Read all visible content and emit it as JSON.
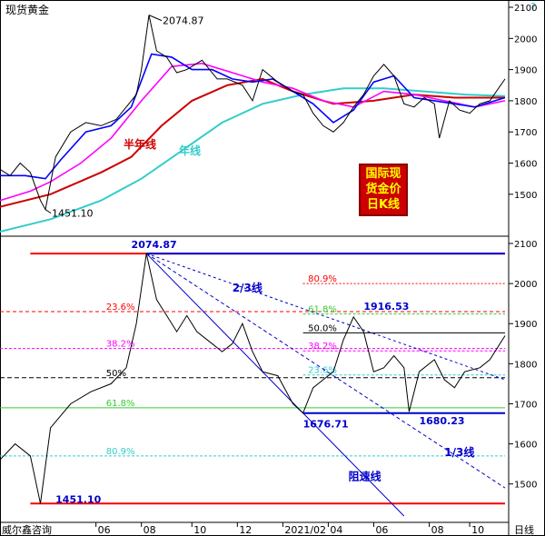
{
  "header": {
    "title": "现货黄金",
    "corner_mark": "?"
  },
  "stamp": {
    "text": "国际现货金价日K线",
    "lines": [
      "国际现",
      "货金价",
      "日K线"
    ]
  },
  "footer": {
    "brand": "威尔鑫咨询",
    "period_label": "日线"
  },
  "colors": {
    "price": "#000000",
    "ma_short": "#0000ff",
    "ma_mid": "#ff00ff",
    "half_year": "#cc0000",
    "year": "#33cccc",
    "red_line": "#ff0000",
    "blue_line": "#0000cc",
    "green_line": "#33cc33",
    "stamp_bg": "#cc0000",
    "stamp_text": "#ffff00"
  },
  "chart_data": [
    {
      "type": "line",
      "title": "现货黄金",
      "y_ticks": [
        1500,
        1600,
        1700,
        1800,
        1900,
        2000,
        2100
      ],
      "ylim": [
        1380,
        2100
      ],
      "x_ticks": [],
      "annotations": [
        {
          "text": "2074.87",
          "value": 2074.87
        },
        {
          "text": "1451.10",
          "value": 1451.1
        },
        {
          "text": "半年线",
          "series": "half_year"
        },
        {
          "text": "年线",
          "series": "year"
        }
      ],
      "series": [
        {
          "key": "price",
          "color": "#000000",
          "points": [
            [
              0,
              1580
            ],
            [
              0.02,
              1560
            ],
            [
              0.04,
              1600
            ],
            [
              0.06,
              1570
            ],
            [
              0.08,
              1480
            ],
            [
              0.09,
              1451.1
            ],
            [
              0.11,
              1620
            ],
            [
              0.14,
              1700
            ],
            [
              0.17,
              1730
            ],
            [
              0.2,
              1720
            ],
            [
              0.23,
              1740
            ],
            [
              0.25,
              1780
            ],
            [
              0.27,
              1820
            ],
            [
              0.28,
              1900
            ],
            [
              0.295,
              2074.87
            ],
            [
              0.31,
              1960
            ],
            [
              0.33,
              1940
            ],
            [
              0.35,
              1890
            ],
            [
              0.37,
              1900
            ],
            [
              0.4,
              1930
            ],
            [
              0.43,
              1870
            ],
            [
              0.45,
              1870
            ],
            [
              0.48,
              1850
            ],
            [
              0.5,
              1800
            ],
            [
              0.52,
              1900
            ],
            [
              0.55,
              1860
            ],
            [
              0.58,
              1830
            ],
            [
              0.6,
              1820
            ],
            [
              0.62,
              1760
            ],
            [
              0.64,
              1720
            ],
            [
              0.66,
              1700
            ],
            [
              0.68,
              1730
            ],
            [
              0.7,
              1780
            ],
            [
              0.72,
              1820
            ],
            [
              0.74,
              1880
            ],
            [
              0.76,
              1916.53
            ],
            [
              0.78,
              1880
            ],
            [
              0.8,
              1790
            ],
            [
              0.82,
              1780
            ],
            [
              0.84,
              1810
            ],
            [
              0.86,
              1790
            ],
            [
              0.87,
              1680.23
            ],
            [
              0.89,
              1800
            ],
            [
              0.91,
              1770
            ],
            [
              0.93,
              1760
            ],
            [
              0.95,
              1790
            ],
            [
              0.97,
              1800
            ],
            [
              1.0,
              1870
            ]
          ]
        },
        {
          "key": "ma_short",
          "color": "#0000ff",
          "points": [
            [
              0,
              1560
            ],
            [
              0.05,
              1560
            ],
            [
              0.09,
              1550
            ],
            [
              0.12,
              1610
            ],
            [
              0.17,
              1700
            ],
            [
              0.22,
              1720
            ],
            [
              0.26,
              1780
            ],
            [
              0.3,
              1950
            ],
            [
              0.34,
              1940
            ],
            [
              0.38,
              1900
            ],
            [
              0.42,
              1900
            ],
            [
              0.46,
              1870
            ],
            [
              0.5,
              1860
            ],
            [
              0.54,
              1870
            ],
            [
              0.58,
              1830
            ],
            [
              0.62,
              1790
            ],
            [
              0.66,
              1730
            ],
            [
              0.7,
              1770
            ],
            [
              0.74,
              1860
            ],
            [
              0.78,
              1880
            ],
            [
              0.82,
              1810
            ],
            [
              0.86,
              1800
            ],
            [
              0.9,
              1790
            ],
            [
              0.94,
              1780
            ],
            [
              1.0,
              1810
            ]
          ]
        },
        {
          "key": "ma_mid",
          "color": "#ff00ff",
          "points": [
            [
              0,
              1480
            ],
            [
              0.06,
              1510
            ],
            [
              0.1,
              1540
            ],
            [
              0.16,
              1600
            ],
            [
              0.22,
              1680
            ],
            [
              0.28,
              1800
            ],
            [
              0.34,
              1910
            ],
            [
              0.4,
              1920
            ],
            [
              0.46,
              1890
            ],
            [
              0.52,
              1860
            ],
            [
              0.58,
              1840
            ],
            [
              0.64,
              1800
            ],
            [
              0.7,
              1780
            ],
            [
              0.76,
              1830
            ],
            [
              0.82,
              1820
            ],
            [
              0.88,
              1800
            ],
            [
              0.94,
              1780
            ],
            [
              1.0,
              1800
            ]
          ]
        },
        {
          "key": "half_year",
          "color": "#cc0000",
          "points": [
            [
              0,
              1460
            ],
            [
              0.1,
              1500
            ],
            [
              0.2,
              1570
            ],
            [
              0.26,
              1620
            ],
            [
              0.32,
              1720
            ],
            [
              0.38,
              1800
            ],
            [
              0.45,
              1850
            ],
            [
              0.52,
              1870
            ],
            [
              0.58,
              1830
            ],
            [
              0.66,
              1790
            ],
            [
              0.74,
              1800
            ],
            [
              0.82,
              1820
            ],
            [
              0.9,
              1810
            ],
            [
              1.0,
              1810
            ]
          ]
        },
        {
          "key": "year",
          "color": "#33cccc",
          "points": [
            [
              0,
              1380
            ],
            [
              0.1,
              1420
            ],
            [
              0.2,
              1480
            ],
            [
              0.28,
              1550
            ],
            [
              0.36,
              1640
            ],
            [
              0.44,
              1730
            ],
            [
              0.52,
              1790
            ],
            [
              0.6,
              1820
            ],
            [
              0.68,
              1840
            ],
            [
              0.76,
              1840
            ],
            [
              0.84,
              1830
            ],
            [
              0.92,
              1820
            ],
            [
              1.0,
              1815
            ]
          ]
        }
      ]
    },
    {
      "type": "line",
      "y_ticks": [
        1500,
        1600,
        1700,
        1800,
        1900,
        2000,
        2100
      ],
      "ylim": [
        1420,
        2100
      ],
      "x_ticks": [
        "06",
        "08",
        "10",
        "12",
        "2021/02",
        "04",
        "06",
        "08",
        "10"
      ],
      "levels": [
        {
          "value": 2074.87,
          "color": "#ff0000",
          "label": ""
        },
        {
          "value": 2074.87,
          "color": "#0000cc",
          "label": ""
        },
        {
          "value": 2000,
          "color": "#ff0000",
          "label": "80.9%"
        },
        {
          "value": 1930,
          "color": "#ff0000",
          "label": "23.6%"
        },
        {
          "value": 1924,
          "color": "#33cc33",
          "label": "61.8%"
        },
        {
          "value": 1877,
          "color": "#000000",
          "label": "50.0%"
        },
        {
          "value": 1838,
          "color": "#ff00ff",
          "label": "38.2%"
        },
        {
          "value": 1832,
          "color": "#ff00ff",
          "label": "38.2%"
        },
        {
          "value": 1772,
          "color": "#33cccc",
          "label": "23.6%"
        },
        {
          "value": 1765,
          "color": "#000000",
          "label": "50%"
        },
        {
          "value": 1690,
          "color": "#33cc33",
          "label": "61.8%"
        },
        {
          "value": 1676.71,
          "color": "#0000cc",
          "label": ""
        },
        {
          "value": 1570,
          "color": "#33cccc",
          "label": "80.9%"
        },
        {
          "value": 1451.1,
          "color": "#ff0000",
          "label": ""
        }
      ],
      "annotations": [
        {
          "text": "2074.87",
          "value": 2074.87
        },
        {
          "text": "1916.53",
          "value": 1916.53
        },
        {
          "text": "1676.71",
          "value": 1676.71
        },
        {
          "text": "1680.23",
          "value": 1680.23
        },
        {
          "text": "1451.10",
          "value": 1451.1
        },
        {
          "text": "2/3线"
        },
        {
          "text": "1/3线"
        },
        {
          "text": "阻速线"
        }
      ],
      "series": [
        {
          "key": "price",
          "color": "#000000",
          "points": [
            [
              0,
              1560
            ],
            [
              0.03,
              1600
            ],
            [
              0.06,
              1570
            ],
            [
              0.08,
              1451.1
            ],
            [
              0.1,
              1640
            ],
            [
              0.14,
              1700
            ],
            [
              0.18,
              1730
            ],
            [
              0.22,
              1750
            ],
            [
              0.25,
              1790
            ],
            [
              0.27,
              1900
            ],
            [
              0.29,
              2074.87
            ],
            [
              0.31,
              1960
            ],
            [
              0.33,
              1920
            ],
            [
              0.35,
              1880
            ],
            [
              0.37,
              1920
            ],
            [
              0.39,
              1880
            ],
            [
              0.42,
              1850
            ],
            [
              0.44,
              1830
            ],
            [
              0.46,
              1850
            ],
            [
              0.48,
              1900
            ],
            [
              0.5,
              1830
            ],
            [
              0.52,
              1780
            ],
            [
              0.55,
              1770
            ],
            [
              0.58,
              1700
            ],
            [
              0.6,
              1676.71
            ],
            [
              0.62,
              1740
            ],
            [
              0.64,
              1760
            ],
            [
              0.66,
              1780
            ],
            [
              0.68,
              1860
            ],
            [
              0.7,
              1916.53
            ],
            [
              0.72,
              1880
            ],
            [
              0.74,
              1780
            ],
            [
              0.76,
              1790
            ],
            [
              0.78,
              1820
            ],
            [
              0.8,
              1790
            ],
            [
              0.81,
              1680.23
            ],
            [
              0.83,
              1780
            ],
            [
              0.86,
              1810
            ],
            [
              0.88,
              1760
            ],
            [
              0.9,
              1740
            ],
            [
              0.92,
              1780
            ],
            [
              0.95,
              1790
            ],
            [
              0.97,
              1810
            ],
            [
              1.0,
              1870
            ]
          ]
        }
      ]
    }
  ]
}
